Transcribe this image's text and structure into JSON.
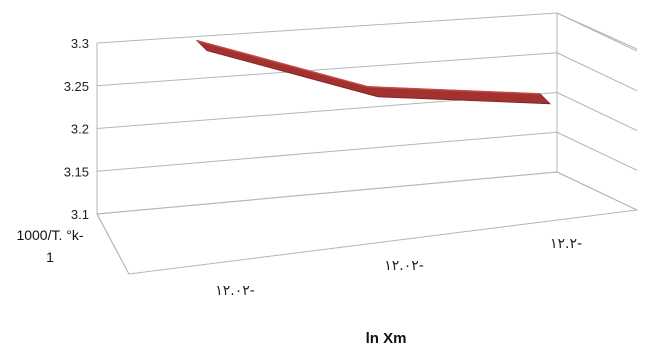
{
  "chart_data": {
    "type": "line",
    "style": "3d-ribbon",
    "categories": [
      "١٢.٠٢-",
      "١٢.٠٢-",
      "١٢.٢-"
    ],
    "series": [
      {
        "values": [
          3.295,
          3.225,
          3.2
        ],
        "color": "#a3312f"
      }
    ],
    "ylim": [
      3.1,
      3.3
    ],
    "yticks": [
      "3.1",
      "3.15",
      "3.2",
      "3.25",
      "3.3"
    ],
    "ylabel_line1": "1000/T. °k-",
    "ylabel_line2": "1",
    "xlabel": "ln Xm",
    "grid": true,
    "legend": false
  }
}
